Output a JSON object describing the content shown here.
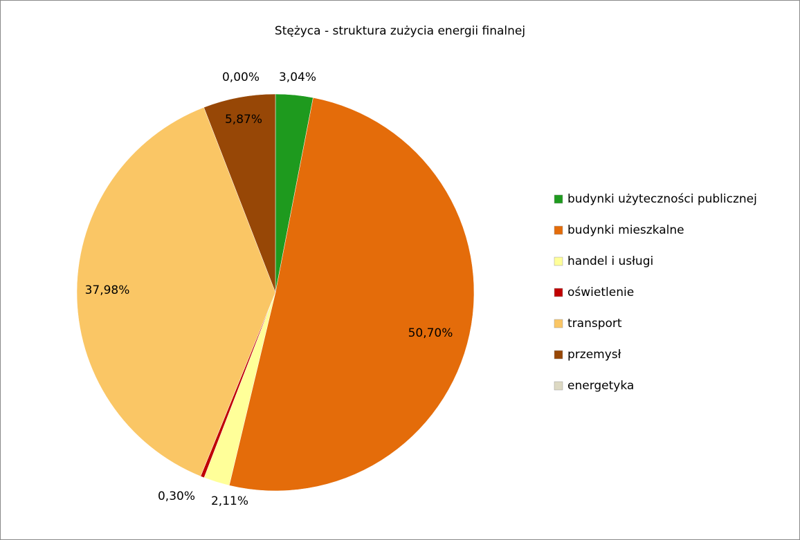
{
  "chart_data": {
    "type": "pie",
    "title": "Stężyca - struktura zużycia energii finalnej",
    "categories": [
      "budynki użyteczności publicznej",
      "budynki mieszkalne",
      "handel i usługi",
      "oświetlenie",
      "transport",
      "przemysł",
      "energetyka"
    ],
    "values": [
      3.04,
      50.7,
      2.11,
      0.3,
      37.98,
      5.87,
      0.0
    ],
    "value_labels": [
      "3,04%",
      "50,70%",
      "2,11%",
      "0,30%",
      "37,98%",
      "5,87%",
      "0,00%"
    ],
    "colors": [
      "#1e9a1e",
      "#e46c0a",
      "#ffff99",
      "#c00000",
      "#fac665",
      "#974706",
      "#ddd9c3"
    ],
    "legend": "right"
  }
}
